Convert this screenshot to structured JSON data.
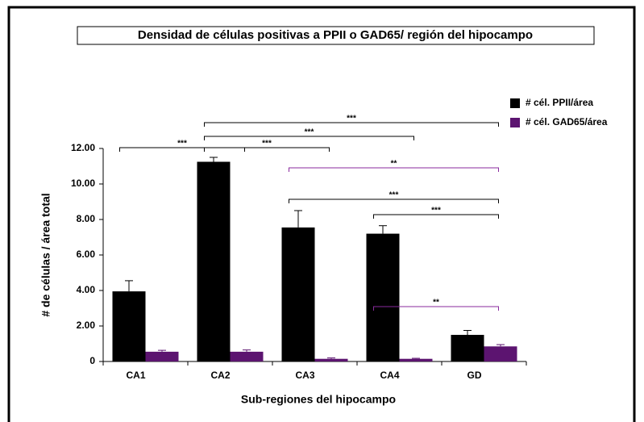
{
  "chart_data": {
    "type": "bar",
    "title": "Densidad de células positivas a PPII o GAD65/ región del hipocampo",
    "x_label": "Sub-regiones del hipocampo",
    "y_label": "# de células / área total",
    "categories": [
      "CA1",
      "CA2",
      "CA3",
      "CA4",
      "GD"
    ],
    "series": [
      {
        "name": "# cél. PPII/área",
        "color": "#000000",
        "values": [
          3.95,
          11.25,
          7.55,
          7.2,
          1.5
        ],
        "errors": [
          0.6,
          0.25,
          0.95,
          0.45,
          0.25
        ]
      },
      {
        "name": "# cél. GAD65/área",
        "color": "#5c1470",
        "values": [
          0.55,
          0.55,
          0.15,
          0.15,
          0.85
        ],
        "errors": [
          0.08,
          0.1,
          0.05,
          0.03,
          0.1
        ]
      }
    ],
    "ylim": [
      0,
      12
    ],
    "yticks": [
      0,
      {
        "value": 2,
        "label": "2.00"
      },
      {
        "value": 4,
        "label": "4.00"
      },
      {
        "value": 6,
        "label": "6.00"
      },
      {
        "value": 8,
        "label": "8.00"
      },
      {
        "value": 10,
        "label": "10.00"
      },
      {
        "value": 12,
        "label": "12.00"
      }
    ],
    "legend": "top-right",
    "annotations": [
      {
        "text": "***",
        "from": "CA1",
        "to": "CA2"
      },
      {
        "text": "***",
        "from": "CA2",
        "to": "GD"
      },
      {
        "text": "***",
        "from": "CA2",
        "to": "CA4"
      },
      {
        "text": "***",
        "from": "CA2",
        "to": "CA3"
      },
      {
        "text": "**",
        "from": "CA3",
        "to": "GD",
        "color": "#8a2a9e"
      },
      {
        "text": "***",
        "from": "CA3",
        "to": "GD"
      },
      {
        "text": "***",
        "from": "CA4",
        "to": "GD"
      },
      {
        "text": "**",
        "from": "CA4",
        "to": "GD",
        "color": "#8a2a9e"
      }
    ]
  }
}
